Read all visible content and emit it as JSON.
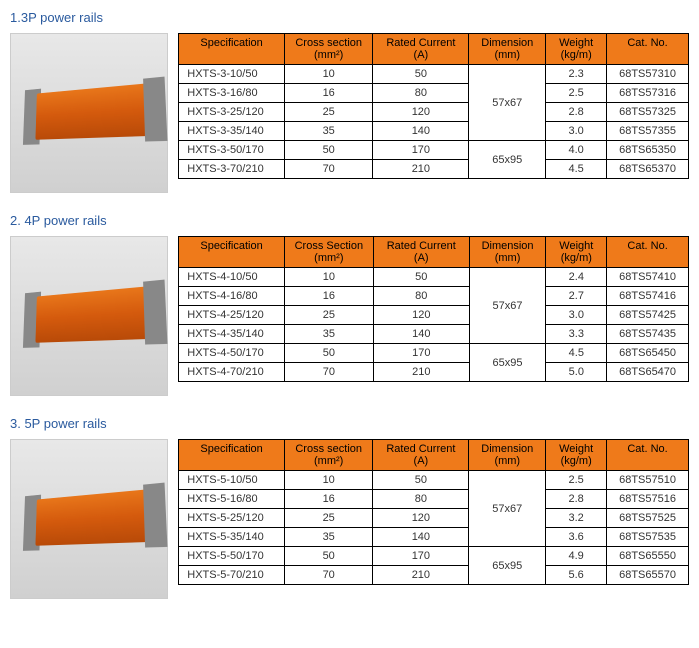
{
  "sections": [
    {
      "title": "1.3P power rails",
      "headers": {
        "spec": "Specification",
        "cs": "Cross section",
        "rc": "Rated Current",
        "dim": "Dimension",
        "wt": "Weight",
        "cat": "Cat. No.",
        "cs_u": "(mm²)",
        "rc_u": "(A)",
        "dim_u": "(mm)",
        "wt_u": "(kg/m)"
      },
      "rows": [
        {
          "spec": "HXTS-3-10/50",
          "cs": "10",
          "rc": "50",
          "wt": "2.3",
          "cat": "68TS57310"
        },
        {
          "spec": "HXTS-3-16/80",
          "cs": "16",
          "rc": "80",
          "wt": "2.5",
          "cat": "68TS57316"
        },
        {
          "spec": "HXTS-3-25/120",
          "cs": "25",
          "rc": "120",
          "wt": "2.8",
          "cat": "68TS57325"
        },
        {
          "spec": "HXTS-3-35/140",
          "cs": "35",
          "rc": "140",
          "wt": "3.0",
          "cat": "68TS57355"
        },
        {
          "spec": "HXTS-3-50/170",
          "cs": "50",
          "rc": "170",
          "wt": "4.0",
          "cat": "68TS65350"
        },
        {
          "spec": "HXTS-3-70/210",
          "cs": "70",
          "rc": "210",
          "wt": "4.5",
          "cat": "68TS65370"
        }
      ],
      "dims": [
        "57x67",
        "65x95"
      ]
    },
    {
      "title": "2. 4P  power rails",
      "headers": {
        "spec": "Specification",
        "cs": "Cross Section",
        "rc": "Rated Current",
        "dim": "Dimension",
        "wt": "Weight",
        "cat": "Cat. No.",
        "cs_u": "(mm²)",
        "rc_u": "(A)",
        "dim_u": "(mm)",
        "wt_u": "(kg/m)"
      },
      "rows": [
        {
          "spec": "HXTS-4-10/50",
          "cs": "10",
          "rc": "50",
          "wt": "2.4",
          "cat": "68TS57410"
        },
        {
          "spec": "HXTS-4-16/80",
          "cs": "16",
          "rc": "80",
          "wt": "2.7",
          "cat": "68TS57416"
        },
        {
          "spec": "HXTS-4-25/120",
          "cs": "25",
          "rc": "120",
          "wt": "3.0",
          "cat": "68TS57425"
        },
        {
          "spec": "HXTS-4-35/140",
          "cs": "35",
          "rc": "140",
          "wt": "3.3",
          "cat": "68TS57435"
        },
        {
          "spec": "HXTS-4-50/170",
          "cs": "50",
          "rc": "170",
          "wt": "4.5",
          "cat": "68TS65450"
        },
        {
          "spec": "HXTS-4-70/210",
          "cs": "70",
          "rc": "210",
          "wt": "5.0",
          "cat": "68TS65470"
        }
      ],
      "dims": [
        "57x67",
        "65x95"
      ]
    },
    {
      "title": "3. 5P  power rails",
      "headers": {
        "spec": "Specification",
        "cs": "Cross section",
        "rc": "Rated Current",
        "dim": "Dimension",
        "wt": "Weight",
        "cat": "Cat. No.",
        "cs_u": "(mm²)",
        "rc_u": "(A)",
        "dim_u": "(mm)",
        "wt_u": "(kg/m)"
      },
      "rows": [
        {
          "spec": "HXTS-5-10/50",
          "cs": "10",
          "rc": "50",
          "wt": "2.5",
          "cat": "68TS57510"
        },
        {
          "spec": "HXTS-5-16/80",
          "cs": "16",
          "rc": "80",
          "wt": "2.8",
          "cat": "68TS57516"
        },
        {
          "spec": "HXTS-5-25/120",
          "cs": "25",
          "rc": "120",
          "wt": "3.2",
          "cat": "68TS57525"
        },
        {
          "spec": "HXTS-5-35/140",
          "cs": "35",
          "rc": "140",
          "wt": "3.6",
          "cat": "68TS57535"
        },
        {
          "spec": "HXTS-5-50/170",
          "cs": "50",
          "rc": "170",
          "wt": "4.9",
          "cat": "68TS65550"
        },
        {
          "spec": "HXTS-5-70/210",
          "cs": "70",
          "rc": "210",
          "wt": "5.6",
          "cat": "68TS65570"
        }
      ],
      "dims": [
        "57x67",
        "65x95"
      ]
    }
  ],
  "style": {
    "header_bg": "#ef7a1a",
    "title_color": "#2a5a9e",
    "border_color": "#000000",
    "font_size": 11,
    "col_widths": {
      "spec": 100,
      "cs": 80,
      "rc": 90,
      "dim": 70,
      "wt": 55,
      "cat": 75
    }
  }
}
